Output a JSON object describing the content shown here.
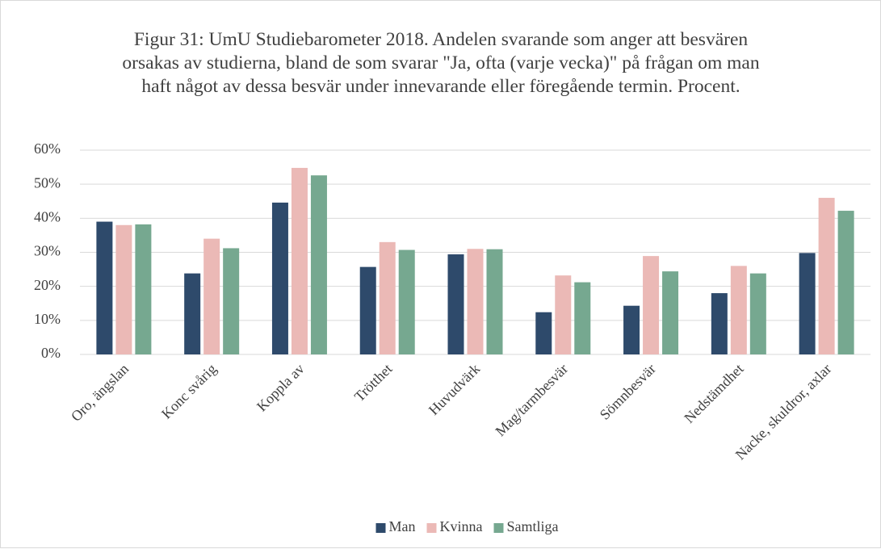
{
  "chart_data": {
    "type": "bar",
    "title": "Figur 31: UmU Studiebarometer 2018. Andelen svarande som anger att besvären orsakas av studierna, bland de som svarar \"Ja, ofta (varje vecka)\" på frågan om man haft något av dessa besvär under innevarande eller föregående termin.  Procent.",
    "categories": [
      "Oro, ängslan",
      "Konc svårig",
      "Koppla av",
      "Trötthet",
      "Huvudvärk",
      "Mag/tarmbesvär",
      "Sömnbesvär",
      "Nedstämdhet",
      "Nacke, skuldror, axlar"
    ],
    "series": [
      {
        "name": "Man",
        "color": "#2e4a6b",
        "values": [
          39,
          23.8,
          44.6,
          25.7,
          29.4,
          12.4,
          14.3,
          18,
          29.8
        ]
      },
      {
        "name": "Kvinna",
        "color": "#ebb9b6",
        "values": [
          38,
          34,
          54.8,
          33,
          31,
          23.2,
          28.9,
          26,
          46
        ]
      },
      {
        "name": "Samtliga",
        "color": "#76a890",
        "values": [
          38.2,
          31.2,
          52.6,
          30.7,
          30.9,
          21.2,
          24.4,
          23.8,
          42.2
        ]
      }
    ],
    "ylim": [
      0,
      60
    ],
    "yticks": [
      {
        "value": 0,
        "label": "0%"
      },
      {
        "value": 10,
        "label": "10%"
      },
      {
        "value": 20,
        "label": "20%"
      },
      {
        "value": 30,
        "label": "30%"
      },
      {
        "value": 40,
        "label": "40%"
      },
      {
        "value": 50,
        "label": "50%"
      },
      {
        "value": 60,
        "label": "60%"
      }
    ],
    "grid": true,
    "legend": "bottom"
  }
}
